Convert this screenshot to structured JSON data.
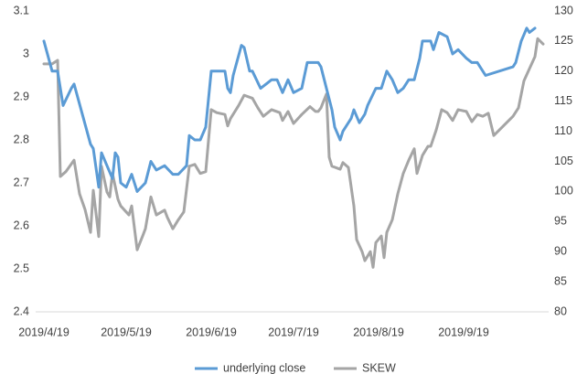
{
  "chart_data": {
    "type": "line",
    "xlim": [
      "2019/4/16",
      "2019/10/20"
    ],
    "xticks": [
      "2019/4/19",
      "2019/5/19",
      "2019/6/19",
      "2019/7/19",
      "2019/8/19",
      "2019/9/19"
    ],
    "ylim": [
      2.4,
      3.1
    ],
    "yticks": [
      2.4,
      2.5,
      2.6,
      2.7,
      2.8,
      2.9,
      3,
      3.1
    ],
    "y2lim": [
      80,
      130
    ],
    "y2ticks": [
      80,
      85,
      90,
      95,
      100,
      105,
      110,
      115,
      120,
      125,
      130
    ],
    "grid": false,
    "legend": "bottom",
    "series": [
      {
        "name": "underlying close",
        "color": "#5b9bd5",
        "axis": "y",
        "x": [
          "2019/4/19",
          "2019/4/22",
          "2019/4/24",
          "2019/4/26",
          "2019/4/29",
          "2019/4/30",
          "2019/5/3",
          "2019/5/6",
          "2019/5/7",
          "2019/5/9",
          "2019/5/10",
          "2019/5/12",
          "2019/5/14",
          "2019/5/15",
          "2019/5/16",
          "2019/5/17",
          "2019/5/19",
          "2019/5/21",
          "2019/5/23",
          "2019/5/26",
          "2019/5/28",
          "2019/5/30",
          "2019/6/2",
          "2019/6/5",
          "2019/6/7",
          "2019/6/10",
          "2019/6/11",
          "2019/6/13",
          "2019/6/15",
          "2019/6/17",
          "2019/6/19",
          "2019/6/22",
          "2019/6/24",
          "2019/6/25",
          "2019/6/26",
          "2019/6/27",
          "2019/6/30",
          "2019/7/1",
          "2019/7/3",
          "2019/7/4",
          "2019/7/7",
          "2019/7/9",
          "2019/7/11",
          "2019/7/13",
          "2019/7/15",
          "2019/7/17",
          "2019/7/19",
          "2019/7/22",
          "2019/7/24",
          "2019/7/25",
          "2019/7/28",
          "2019/7/29",
          "2019/7/31",
          "2019/8/2",
          "2019/8/3",
          "2019/8/5",
          "2019/8/6",
          "2019/8/9",
          "2019/8/10",
          "2019/8/12",
          "2019/8/14",
          "2019/8/15",
          "2019/8/18",
          "2019/8/20",
          "2019/8/22",
          "2019/8/24",
          "2019/8/26",
          "2019/8/28",
          "2019/8/30",
          "2019/9/1",
          "2019/9/3",
          "2019/9/4",
          "2019/9/7",
          "2019/9/8",
          "2019/9/10",
          "2019/9/13",
          "2019/9/15",
          "2019/9/17",
          "2019/9/20",
          "2019/9/22",
          "2019/9/24",
          "2019/9/27",
          "2019/10/7",
          "2019/10/8",
          "2019/10/10",
          "2019/10/12",
          "2019/10/13",
          "2019/10/15"
        ],
        "values": [
          3.03,
          2.96,
          2.96,
          2.88,
          2.92,
          2.93,
          2.86,
          2.79,
          2.78,
          2.69,
          2.77,
          2.74,
          2.71,
          2.77,
          2.76,
          2.7,
          2.69,
          2.72,
          2.68,
          2.7,
          2.75,
          2.73,
          2.74,
          2.72,
          2.72,
          2.74,
          2.81,
          2.8,
          2.8,
          2.83,
          2.96,
          2.96,
          2.96,
          2.92,
          2.91,
          2.95,
          3.02,
          3.015,
          2.96,
          2.96,
          2.92,
          2.93,
          2.94,
          2.94,
          2.91,
          2.94,
          2.91,
          2.92,
          2.98,
          2.98,
          2.98,
          2.97,
          2.92,
          2.87,
          2.83,
          2.8,
          2.82,
          2.85,
          2.87,
          2.84,
          2.86,
          2.88,
          2.92,
          2.92,
          2.96,
          2.94,
          2.91,
          2.92,
          2.94,
          2.94,
          2.99,
          3.03,
          3.03,
          3.01,
          3.05,
          3.04,
          3.0,
          3.01,
          2.99,
          2.98,
          2.98,
          2.95,
          2.97,
          2.98,
          3.03,
          3.06,
          3.05,
          3.06
        ]
      },
      {
        "name": "SKEW",
        "color": "#a5a5a5",
        "axis": "y2",
        "x": [
          "2019/4/19",
          "2019/4/22",
          "2019/4/24",
          "2019/4/25",
          "2019/4/27",
          "2019/4/30",
          "2019/5/2",
          "2019/5/4",
          "2019/5/6",
          "2019/5/7",
          "2019/5/9",
          "2019/5/10",
          "2019/5/12",
          "2019/5/13",
          "2019/5/14",
          "2019/5/16",
          "2019/5/17",
          "2019/5/20",
          "2019/5/21",
          "2019/5/23",
          "2019/5/25",
          "2019/5/26",
          "2019/5/28",
          "2019/5/30",
          "2019/6/2",
          "2019/6/3",
          "2019/6/5",
          "2019/6/7",
          "2019/6/9",
          "2019/6/11",
          "2019/6/13",
          "2019/6/15",
          "2019/6/17",
          "2019/6/19",
          "2019/6/21",
          "2019/6/24",
          "2019/6/25",
          "2019/6/26",
          "2019/6/29",
          "2019/7/1",
          "2019/7/4",
          "2019/7/6",
          "2019/7/8",
          "2019/7/11",
          "2019/7/14",
          "2019/7/15",
          "2019/7/17",
          "2019/7/19",
          "2019/7/22",
          "2019/7/25",
          "2019/7/27",
          "2019/7/28",
          "2019/7/29",
          "2019/7/31",
          "2019/8/1",
          "2019/8/2",
          "2019/8/5",
          "2019/8/6",
          "2019/8/8",
          "2019/8/10",
          "2019/8/11",
          "2019/8/13",
          "2019/8/14",
          "2019/8/16",
          "2019/8/17",
          "2019/8/18",
          "2019/8/20",
          "2019/8/21",
          "2019/8/22",
          "2019/8/24",
          "2019/8/26",
          "2019/8/28",
          "2019/8/30",
          "2019/9/1",
          "2019/9/2",
          "2019/9/4",
          "2019/9/6",
          "2019/9/7",
          "2019/9/9",
          "2019/9/11",
          "2019/9/13",
          "2019/9/15",
          "2019/9/17",
          "2019/9/20",
          "2019/9/22",
          "2019/9/24",
          "2019/9/26",
          "2019/9/28",
          "2019/9/30",
          "2019/10/7",
          "2019/10/9",
          "2019/10/11",
          "2019/10/13",
          "2019/10/15",
          "2019/10/16",
          "2019/10/18"
        ],
        "values": [
          121.2,
          121.2,
          121.8,
          102.5,
          103.3,
          105.2,
          99.6,
          97,
          93.2,
          100.2,
          92.5,
          104.2,
          99.9,
          99.1,
          103,
          98.7,
          97.6,
          96.1,
          97.6,
          90.3,
          92.6,
          93.8,
          99.1,
          96.1,
          96.9,
          95.7,
          93.8,
          95.3,
          96.6,
          104.2,
          104.5,
          103,
          103.3,
          113.6,
          113.1,
          112.8,
          110.9,
          112.1,
          114.3,
          116,
          115.5,
          113.9,
          112.5,
          113.6,
          113.1,
          111.8,
          113.3,
          111.3,
          112.8,
          114.1,
          113.3,
          113.3,
          113.9,
          116.2,
          105.7,
          104.2,
          103.7,
          104.8,
          104,
          97.6,
          92,
          90,
          88.5,
          90,
          87.4,
          91.5,
          92.6,
          89,
          93.2,
          95.3,
          99.6,
          103,
          105.2,
          107.1,
          103,
          106,
          107.5,
          107.5,
          110.2,
          113.6,
          113.1,
          111.8,
          113.6,
          113.3,
          111.6,
          112.8,
          112.5,
          113,
          109.3,
          112.5,
          113.9,
          118.4,
          120.4,
          122.4,
          125.4,
          124.5
        ]
      }
    ]
  }
}
